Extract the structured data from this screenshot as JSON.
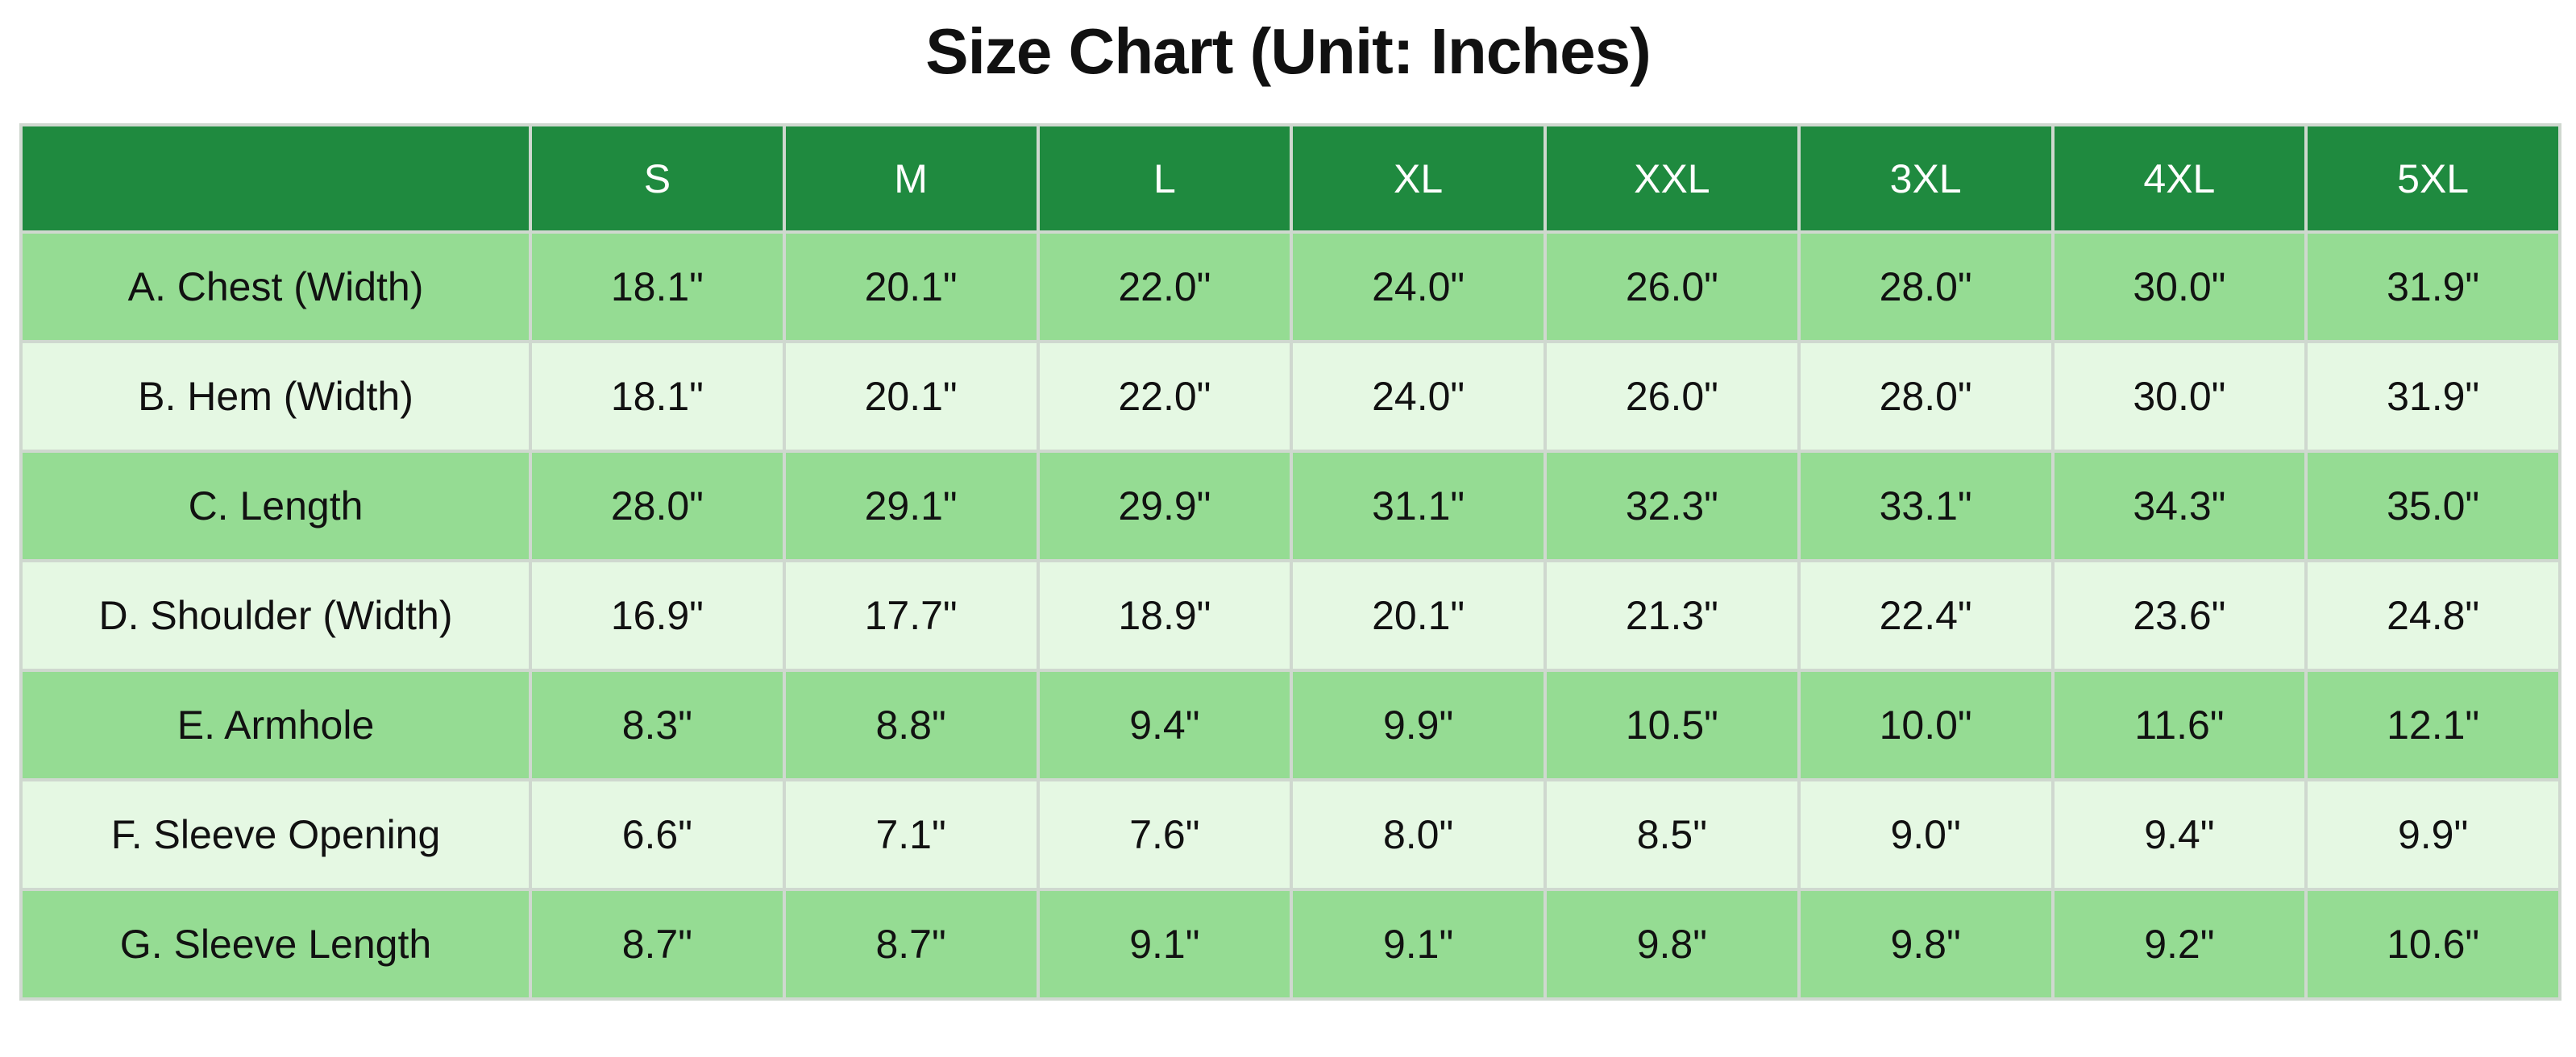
{
  "title": "Size Chart (Unit: Inches)",
  "table": {
    "columns": [
      "S",
      "M",
      "L",
      "XL",
      "XXL",
      "3XL",
      "4XL",
      "5XL"
    ],
    "rows": [
      {
        "label": "A. Chest (Width)",
        "values": [
          "18.1\"",
          "20.1\"",
          "22.0\"",
          "24.0\"",
          "26.0\"",
          "28.0\"",
          "30.0\"",
          "31.9\""
        ]
      },
      {
        "label": "B. Hem (Width)",
        "values": [
          "18.1\"",
          "20.1\"",
          "22.0\"",
          "24.0\"",
          "26.0\"",
          "28.0\"",
          "30.0\"",
          "31.9\""
        ]
      },
      {
        "label": "C. Length",
        "values": [
          "28.0\"",
          "29.1\"",
          "29.9\"",
          "31.1\"",
          "32.3\"",
          "33.1\"",
          "34.3\"",
          "35.0\""
        ]
      },
      {
        "label": "D. Shoulder (Width)",
        "values": [
          "16.9\"",
          "17.7\"",
          "18.9\"",
          "20.1\"",
          "21.3\"",
          "22.4\"",
          "23.6\"",
          "24.8\""
        ]
      },
      {
        "label": "E. Armhole",
        "values": [
          "8.3\"",
          "8.8\"",
          "9.4\"",
          "9.9\"",
          "10.5\"",
          "10.0\"",
          "11.6\"",
          "12.1\""
        ]
      },
      {
        "label": "F. Sleeve Opening",
        "values": [
          "6.6\"",
          "7.1\"",
          "7.6\"",
          "8.0\"",
          "8.5\"",
          "9.0\"",
          "9.4\"",
          "9.9\""
        ]
      },
      {
        "label": "G. Sleeve Length",
        "values": [
          "8.7\"",
          "8.7\"",
          "9.1\"",
          "9.1\"",
          "9.8\"",
          "9.8\"",
          "9.2\"",
          "10.6\""
        ]
      }
    ]
  }
}
